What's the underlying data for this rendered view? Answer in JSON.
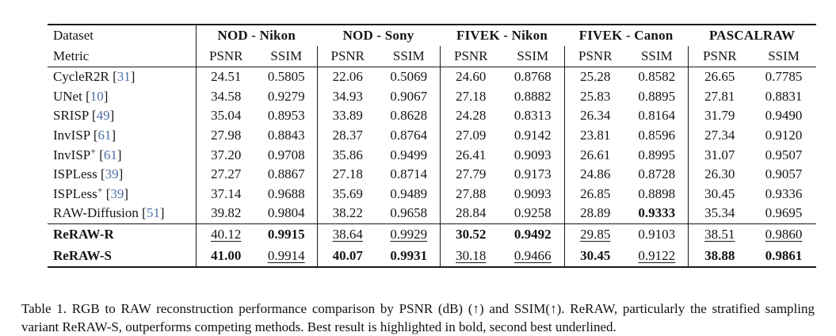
{
  "colors": {
    "citation_link": "#4b6fa6",
    "rule": "#1a1a1a",
    "text": "#151515"
  },
  "table": {
    "header": {
      "row1_label": "Dataset",
      "row2_label": "Metric"
    },
    "groups": [
      "NOD - Nikon",
      "NOD - Sony",
      "FIVEK - Nikon",
      "FIVEK - Canon",
      "PASCALRAW"
    ],
    "metrics": [
      "PSNR",
      "SSIM"
    ],
    "rows": [
      {
        "name": "CycleR2R",
        "sup": "",
        "ref": "31",
        "cells": [
          [
            "24.51",
            "p"
          ],
          [
            "0.5805",
            "p"
          ],
          [
            "22.06",
            "p"
          ],
          [
            "0.5069",
            "p"
          ],
          [
            "24.60",
            "p"
          ],
          [
            "0.8768",
            "p"
          ],
          [
            "25.28",
            "p"
          ],
          [
            "0.8582",
            "p"
          ],
          [
            "26.65",
            "p"
          ],
          [
            "0.7785",
            "p"
          ]
        ]
      },
      {
        "name": "UNet",
        "sup": "",
        "ref": "10",
        "cells": [
          [
            "34.58",
            "p"
          ],
          [
            "0.9279",
            "p"
          ],
          [
            "34.93",
            "p"
          ],
          [
            "0.9067",
            "p"
          ],
          [
            "27.18",
            "p"
          ],
          [
            "0.8882",
            "p"
          ],
          [
            "25.83",
            "p"
          ],
          [
            "0.8895",
            "p"
          ],
          [
            "27.81",
            "p"
          ],
          [
            "0.8831",
            "p"
          ]
        ]
      },
      {
        "name": "SRISP",
        "sup": "",
        "ref": "49",
        "cells": [
          [
            "35.04",
            "p"
          ],
          [
            "0.8953",
            "p"
          ],
          [
            "33.89",
            "p"
          ],
          [
            "0.8628",
            "p"
          ],
          [
            "24.28",
            "p"
          ],
          [
            "0.8313",
            "p"
          ],
          [
            "26.34",
            "p"
          ],
          [
            "0.8164",
            "p"
          ],
          [
            "31.79",
            "p"
          ],
          [
            "0.9490",
            "p"
          ]
        ]
      },
      {
        "name": "InvISP",
        "sup": "",
        "ref": "61",
        "cells": [
          [
            "27.98",
            "p"
          ],
          [
            "0.8843",
            "p"
          ],
          [
            "28.37",
            "p"
          ],
          [
            "0.8764",
            "p"
          ],
          [
            "27.09",
            "p"
          ],
          [
            "0.9142",
            "p"
          ],
          [
            "23.81",
            "p"
          ],
          [
            "0.8596",
            "p"
          ],
          [
            "27.34",
            "p"
          ],
          [
            "0.9120",
            "p"
          ]
        ]
      },
      {
        "name": "InvISP",
        "sup": "+",
        "ref": "61",
        "cells": [
          [
            "37.20",
            "p"
          ],
          [
            "0.9708",
            "p"
          ],
          [
            "35.86",
            "p"
          ],
          [
            "0.9499",
            "p"
          ],
          [
            "26.41",
            "p"
          ],
          [
            "0.9093",
            "p"
          ],
          [
            "26.61",
            "p"
          ],
          [
            "0.8995",
            "p"
          ],
          [
            "31.07",
            "p"
          ],
          [
            "0.9507",
            "p"
          ]
        ]
      },
      {
        "name": "ISPLess",
        "sup": "",
        "ref": "39",
        "cells": [
          [
            "27.27",
            "p"
          ],
          [
            "0.8867",
            "p"
          ],
          [
            "27.18",
            "p"
          ],
          [
            "0.8714",
            "p"
          ],
          [
            "27.79",
            "p"
          ],
          [
            "0.9173",
            "p"
          ],
          [
            "24.86",
            "p"
          ],
          [
            "0.8728",
            "p"
          ],
          [
            "26.30",
            "p"
          ],
          [
            "0.9057",
            "p"
          ]
        ]
      },
      {
        "name": "ISPLess",
        "sup": "+",
        "ref": "39",
        "cells": [
          [
            "37.14",
            "p"
          ],
          [
            "0.9688",
            "p"
          ],
          [
            "35.69",
            "p"
          ],
          [
            "0.9489",
            "p"
          ],
          [
            "27.88",
            "p"
          ],
          [
            "0.9093",
            "p"
          ],
          [
            "26.85",
            "p"
          ],
          [
            "0.8898",
            "p"
          ],
          [
            "30.45",
            "p"
          ],
          [
            "0.9336",
            "p"
          ]
        ]
      },
      {
        "name": "RAW-Diffusion",
        "sup": "",
        "ref": "51",
        "cells": [
          [
            "39.82",
            "p"
          ],
          [
            "0.9804",
            "p"
          ],
          [
            "38.22",
            "p"
          ],
          [
            "0.9658",
            "p"
          ],
          [
            "28.84",
            "p"
          ],
          [
            "0.9258",
            "p"
          ],
          [
            "28.89",
            "p"
          ],
          [
            "0.9333",
            "b"
          ],
          [
            "35.34",
            "p"
          ],
          [
            "0.9695",
            "p"
          ]
        ]
      }
    ],
    "highlight_rows": [
      {
        "name": "ReRAW-R",
        "sup": "",
        "ref": "",
        "cells": [
          [
            "40.12",
            "u"
          ],
          [
            "0.9915",
            "b"
          ],
          [
            "38.64",
            "u"
          ],
          [
            "0.9929",
            "u"
          ],
          [
            "30.52",
            "b"
          ],
          [
            "0.9492",
            "b"
          ],
          [
            "29.85",
            "u"
          ],
          [
            "0.9103",
            "p"
          ],
          [
            "38.51",
            "u"
          ],
          [
            "0.9860",
            "u"
          ]
        ]
      },
      {
        "name": "ReRAW-S",
        "sup": "",
        "ref": "",
        "cells": [
          [
            "41.00",
            "b"
          ],
          [
            "0.9914",
            "u"
          ],
          [
            "40.07",
            "b"
          ],
          [
            "0.9931",
            "b"
          ],
          [
            "30.18",
            "u"
          ],
          [
            "0.9466",
            "u"
          ],
          [
            "30.45",
            "b"
          ],
          [
            "0.9122",
            "u"
          ],
          [
            "38.88",
            "b"
          ],
          [
            "0.9861",
            "b"
          ]
        ]
      }
    ],
    "style_legend": {
      "b": "best (bold)",
      "u": "second best (underlined)",
      "p": "plain"
    }
  },
  "caption": {
    "text": "Table 1.  RGB to RAW reconstruction performance comparison by PSNR (dB) (↑) and SSIM(↑).  ReRAW, particularly the stratified sampling variant ReRAW-S, outperforms competing methods. Best result is highlighted in bold, second best underlined."
  }
}
